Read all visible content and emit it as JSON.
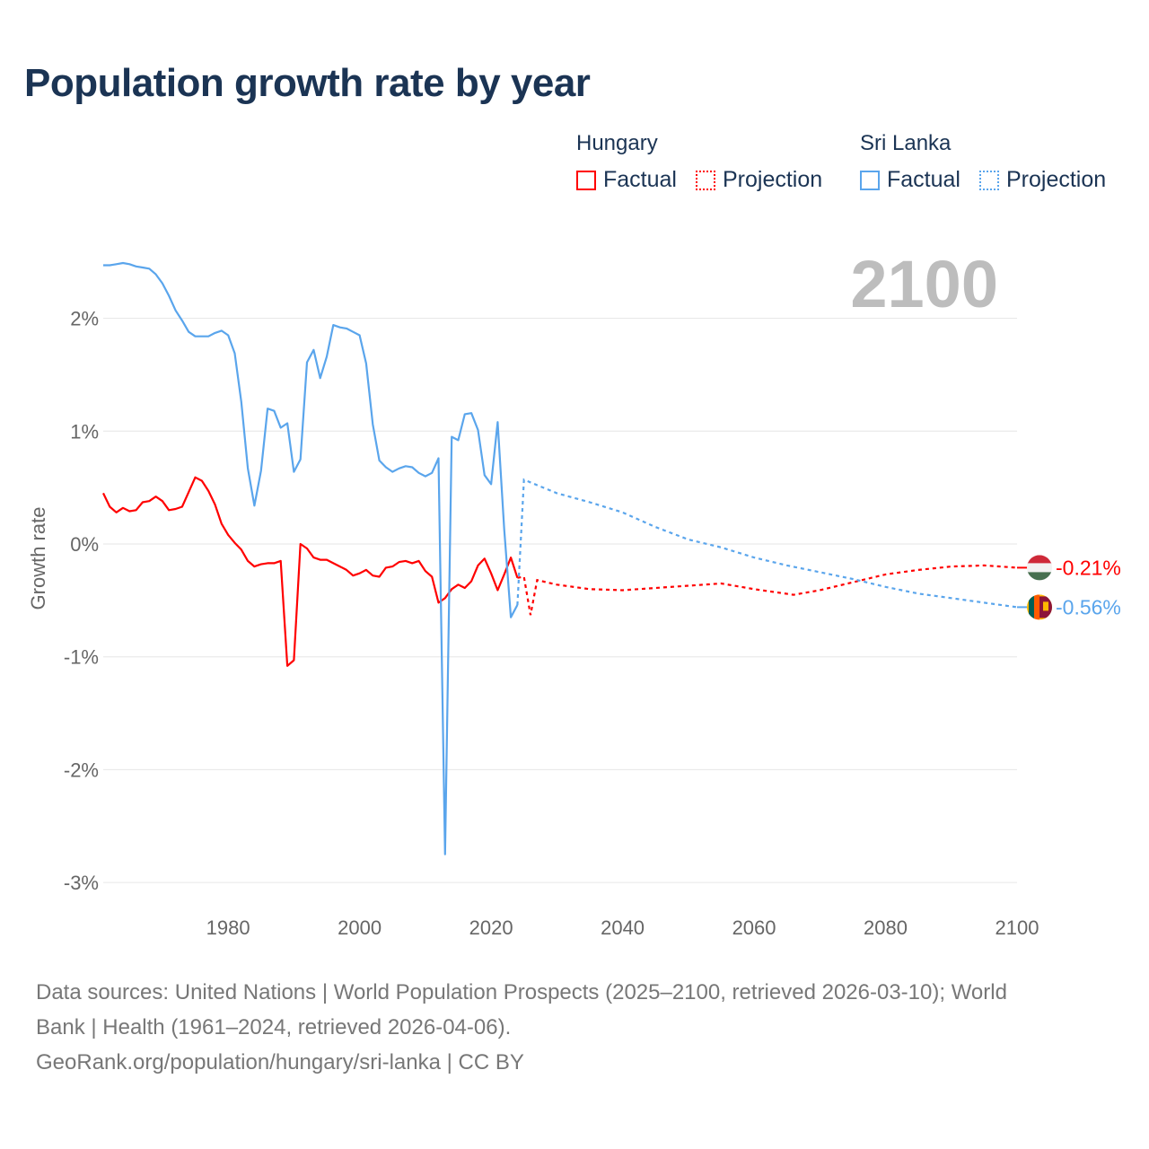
{
  "title": "Population growth rate by year",
  "legend": {
    "groups": [
      {
        "name": "Hungary",
        "color": "#ff0000",
        "factual": "Factual",
        "projection": "Projection"
      },
      {
        "name": "Sri Lanka",
        "color": "#5aa5ec",
        "factual": "Factual",
        "projection": "Projection"
      }
    ]
  },
  "year_display": "2100",
  "footer": {
    "line1": "Data sources: United Nations | World Population Prospects (2025–2100, retrieved 2026-03-10); World",
    "line2": "Bank | Health (1961–2024, retrieved 2026-04-06).",
    "line3": "GeoRank.org/population/hungary/sri-lanka | CC BY"
  },
  "chart_data": {
    "type": "line",
    "title": "Population growth rate by year",
    "xlabel": "",
    "ylabel": "Growth rate",
    "xlim": [
      1961,
      2100
    ],
    "ylim": [
      -3,
      2.5
    ],
    "xticks": [
      1980,
      2000,
      2020,
      2040,
      2060,
      2080,
      2100
    ],
    "yticks": [
      {
        "v": 2,
        "label": "2%"
      },
      {
        "v": 1,
        "label": "1%"
      },
      {
        "v": 0,
        "label": "0%"
      },
      {
        "v": -1,
        "label": "-1%"
      },
      {
        "v": -2,
        "label": "-2%"
      },
      {
        "v": -3,
        "label": "-3%"
      }
    ],
    "grid": true,
    "series": [
      {
        "name": "Hungary",
        "color": "#ff0000",
        "end_label": "-0.21%",
        "factual": {
          "start": 1961,
          "values": [
            0.45,
            0.33,
            0.28,
            0.32,
            0.29,
            0.3,
            0.37,
            0.38,
            0.42,
            0.38,
            0.3,
            0.31,
            0.33,
            0.46,
            0.59,
            0.56,
            0.47,
            0.35,
            0.18,
            0.08,
            0.01,
            -0.05,
            -0.15,
            -0.2,
            -0.18,
            -0.17,
            -0.17,
            -0.15,
            -1.08,
            -1.03,
            0.0,
            -0.04,
            -0.12,
            -0.14,
            -0.14,
            -0.17,
            -0.2,
            -0.23,
            -0.28,
            -0.26,
            -0.23,
            -0.28,
            -0.29,
            -0.21,
            -0.2,
            -0.16,
            -0.15,
            -0.17,
            -0.15,
            -0.24,
            -0.29,
            -0.52,
            -0.48,
            -0.4,
            -0.36,
            -0.39,
            -0.33,
            -0.19,
            -0.13,
            -0.26,
            -0.41,
            -0.27,
            -0.12,
            -0.3
          ]
        },
        "projection": {
          "x": [
            2024,
            2025,
            2026,
            2027,
            2030,
            2035,
            2040,
            2045,
            2050,
            2055,
            2060,
            2066,
            2070,
            2075,
            2080,
            2085,
            2090,
            2095,
            2100
          ],
          "values": [
            -0.3,
            -0.29,
            -0.63,
            -0.32,
            -0.36,
            -0.4,
            -0.41,
            -0.39,
            -0.37,
            -0.35,
            -0.4,
            -0.45,
            -0.41,
            -0.34,
            -0.27,
            -0.23,
            -0.2,
            -0.19,
            -0.21
          ]
        }
      },
      {
        "name": "Sri Lanka",
        "color": "#5aa5ec",
        "end_label": "-0.56%",
        "factual": {
          "start": 1961,
          "values": [
            2.47,
            2.47,
            2.48,
            2.49,
            2.48,
            2.46,
            2.45,
            2.44,
            2.39,
            2.31,
            2.2,
            2.07,
            1.98,
            1.88,
            1.84,
            1.84,
            1.84,
            1.87,
            1.89,
            1.85,
            1.69,
            1.26,
            0.67,
            0.34,
            0.65,
            1.2,
            1.18,
            1.03,
            1.07,
            0.64,
            0.75,
            1.61,
            1.72,
            1.47,
            1.66,
            1.94,
            1.92,
            1.91,
            1.88,
            1.85,
            1.6,
            1.06,
            0.74,
            0.68,
            0.64,
            0.67,
            0.69,
            0.68,
            0.63,
            0.6,
            0.63,
            0.76,
            -2.75,
            0.95,
            0.92,
            1.15,
            1.16,
            1.01,
            0.61,
            0.53,
            1.08,
            0.13,
            -0.65,
            -0.54
          ]
        },
        "projection": {
          "x": [
            2024,
            2025,
            2030,
            2035,
            2040,
            2045,
            2050,
            2055,
            2060,
            2065,
            2070,
            2075,
            2080,
            2085,
            2090,
            2095,
            2100
          ],
          "values": [
            -0.54,
            0.57,
            0.45,
            0.37,
            0.28,
            0.15,
            0.04,
            -0.03,
            -0.12,
            -0.19,
            -0.25,
            -0.31,
            -0.38,
            -0.44,
            -0.48,
            -0.52,
            -0.56
          ]
        }
      }
    ]
  }
}
